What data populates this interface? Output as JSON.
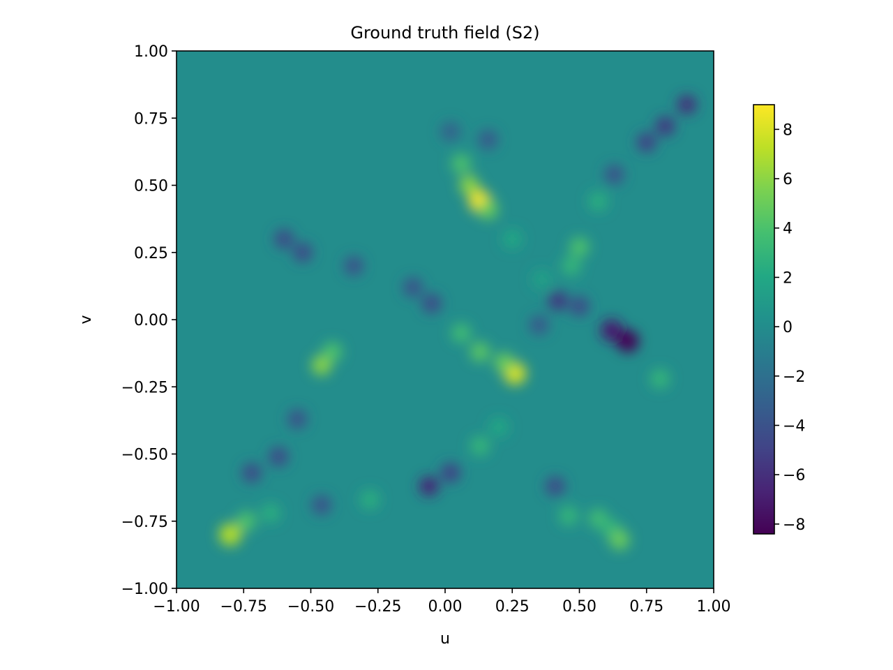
{
  "chart_data": {
    "type": "heatmap",
    "title": "Ground truth field (S2)",
    "xlabel": "u",
    "ylabel": "v",
    "xlim": [
      -1.0,
      1.0
    ],
    "ylim": [
      -1.0,
      1.0
    ],
    "x_ticks": [
      -1.0,
      -0.75,
      -0.5,
      -0.25,
      0.0,
      0.25,
      0.5,
      0.75,
      1.0
    ],
    "x_tick_labels": [
      "−1.00",
      "−0.75",
      "−0.50",
      "−0.25",
      "0.00",
      "0.25",
      "0.50",
      "0.75",
      "1.00"
    ],
    "y_ticks": [
      -1.0,
      -0.75,
      -0.5,
      -0.25,
      0.0,
      0.25,
      0.5,
      0.75,
      1.0
    ],
    "y_tick_labels": [
      "−1.00",
      "−0.75",
      "−0.50",
      "−0.25",
      "0.00",
      "0.25",
      "0.50",
      "0.75",
      "1.00"
    ],
    "colormap": "viridis",
    "background_value": 0.0,
    "colorbar": {
      "vmin": -8.4,
      "vmax": 9.0,
      "ticks": [
        -8,
        -6,
        -4,
        -2,
        0,
        2,
        4,
        6,
        8
      ],
      "tick_labels": [
        "−8",
        "−6",
        "−4",
        "−2",
        "0",
        "2",
        "4",
        "6",
        "8"
      ]
    },
    "features": [
      {
        "u": 0.13,
        "v": 0.44,
        "value": 9.0
      },
      {
        "u": 0.09,
        "v": 0.5,
        "value": 6.0
      },
      {
        "u": 0.06,
        "v": 0.58,
        "value": 4.0
      },
      {
        "u": 0.16,
        "v": 0.41,
        "value": 5.0
      },
      {
        "u": 0.25,
        "v": 0.3,
        "value": 2.0
      },
      {
        "u": 0.02,
        "v": 0.7,
        "value": -3.0
      },
      {
        "u": 0.16,
        "v": 0.67,
        "value": -3.5
      },
      {
        "u": 0.57,
        "v": 0.44,
        "value": 2.5
      },
      {
        "u": 0.5,
        "v": 0.27,
        "value": 4.0
      },
      {
        "u": 0.47,
        "v": 0.2,
        "value": 3.0
      },
      {
        "u": 0.36,
        "v": 0.15,
        "value": 1.5
      },
      {
        "u": 0.9,
        "v": 0.8,
        "value": -6.0
      },
      {
        "u": 0.82,
        "v": 0.72,
        "value": -5.5
      },
      {
        "u": 0.75,
        "v": 0.66,
        "value": -5.0
      },
      {
        "u": 0.63,
        "v": 0.54,
        "value": -4.0
      },
      {
        "u": -0.6,
        "v": 0.3,
        "value": -4.5
      },
      {
        "u": -0.53,
        "v": 0.25,
        "value": -4.5
      },
      {
        "u": -0.34,
        "v": 0.2,
        "value": -4.0
      },
      {
        "u": -0.12,
        "v": 0.12,
        "value": -4.0
      },
      {
        "u": -0.05,
        "v": 0.06,
        "value": -4.5
      },
      {
        "u": 0.06,
        "v": -0.05,
        "value": 3.5
      },
      {
        "u": 0.13,
        "v": -0.12,
        "value": 4.5
      },
      {
        "u": 0.26,
        "v": -0.2,
        "value": 8.0
      },
      {
        "u": 0.22,
        "v": -0.16,
        "value": 5.0
      },
      {
        "u": 0.35,
        "v": -0.02,
        "value": -3.5
      },
      {
        "u": 0.42,
        "v": 0.07,
        "value": -5.5
      },
      {
        "u": 0.5,
        "v": 0.05,
        "value": -4.5
      },
      {
        "u": 0.62,
        "v": -0.04,
        "value": -7.0
      },
      {
        "u": 0.68,
        "v": -0.08,
        "value": -8.4
      },
      {
        "u": 0.8,
        "v": -0.22,
        "value": 3.0
      },
      {
        "u": -0.46,
        "v": -0.17,
        "value": 6.0
      },
      {
        "u": -0.42,
        "v": -0.12,
        "value": 4.0
      },
      {
        "u": -0.55,
        "v": -0.37,
        "value": -4.0
      },
      {
        "u": -0.62,
        "v": -0.51,
        "value": -4.5
      },
      {
        "u": -0.72,
        "v": -0.57,
        "value": -4.5
      },
      {
        "u": -0.8,
        "v": -0.8,
        "value": 7.0
      },
      {
        "u": -0.74,
        "v": -0.75,
        "value": 4.0
      },
      {
        "u": -0.65,
        "v": -0.72,
        "value": 2.5
      },
      {
        "u": -0.46,
        "v": -0.69,
        "value": -4.0
      },
      {
        "u": -0.28,
        "v": -0.67,
        "value": 2.5
      },
      {
        "u": -0.06,
        "v": -0.62,
        "value": -6.5
      },
      {
        "u": 0.02,
        "v": -0.57,
        "value": -5.0
      },
      {
        "u": 0.13,
        "v": -0.47,
        "value": 3.0
      },
      {
        "u": 0.2,
        "v": -0.4,
        "value": 2.0
      },
      {
        "u": 0.41,
        "v": -0.62,
        "value": -4.5
      },
      {
        "u": 0.46,
        "v": -0.73,
        "value": 3.0
      },
      {
        "u": 0.57,
        "v": -0.74,
        "value": 3.5
      },
      {
        "u": 0.62,
        "v": -0.78,
        "value": 3.0
      },
      {
        "u": 0.65,
        "v": -0.82,
        "value": 5.0
      }
    ]
  }
}
